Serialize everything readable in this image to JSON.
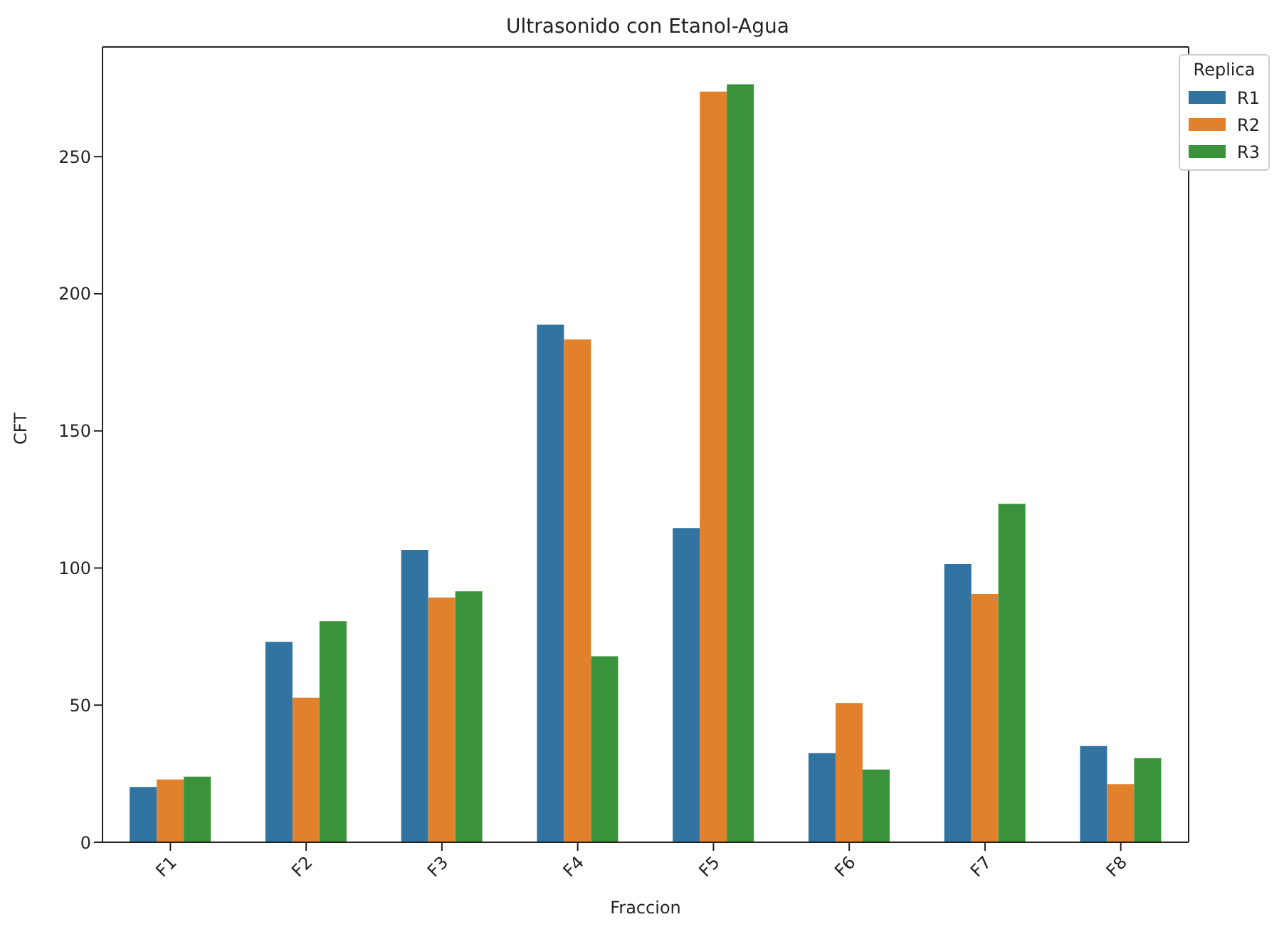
{
  "chart_data": {
    "type": "bar",
    "title": "Ultrasonido con Etanol-Agua",
    "xlabel": "Fraccion",
    "ylabel": "CFT",
    "legend_title": "Replica",
    "legend": "top right",
    "categories": [
      "F1",
      "F2",
      "F3",
      "F4",
      "F5",
      "F6",
      "F7",
      "F8"
    ],
    "series": [
      {
        "name": "R1",
        "color": "#3274a1",
        "values": [
          20.2,
          73.1,
          106.6,
          188.7,
          114.6,
          32.5,
          101.4,
          35.1
        ]
      },
      {
        "name": "R2",
        "color": "#e1812c",
        "values": [
          22.9,
          52.7,
          89.2,
          183.3,
          273.7,
          50.8,
          90.5,
          21.2
        ]
      },
      {
        "name": "R3",
        "color": "#3a923a",
        "values": [
          23.9,
          80.6,
          91.5,
          67.8,
          276.4,
          26.5,
          123.4,
          30.7
        ]
      }
    ],
    "ylim": [
      0,
      290
    ],
    "yticks": [
      0,
      50,
      100,
      150,
      200,
      250
    ],
    "grid": false
  }
}
